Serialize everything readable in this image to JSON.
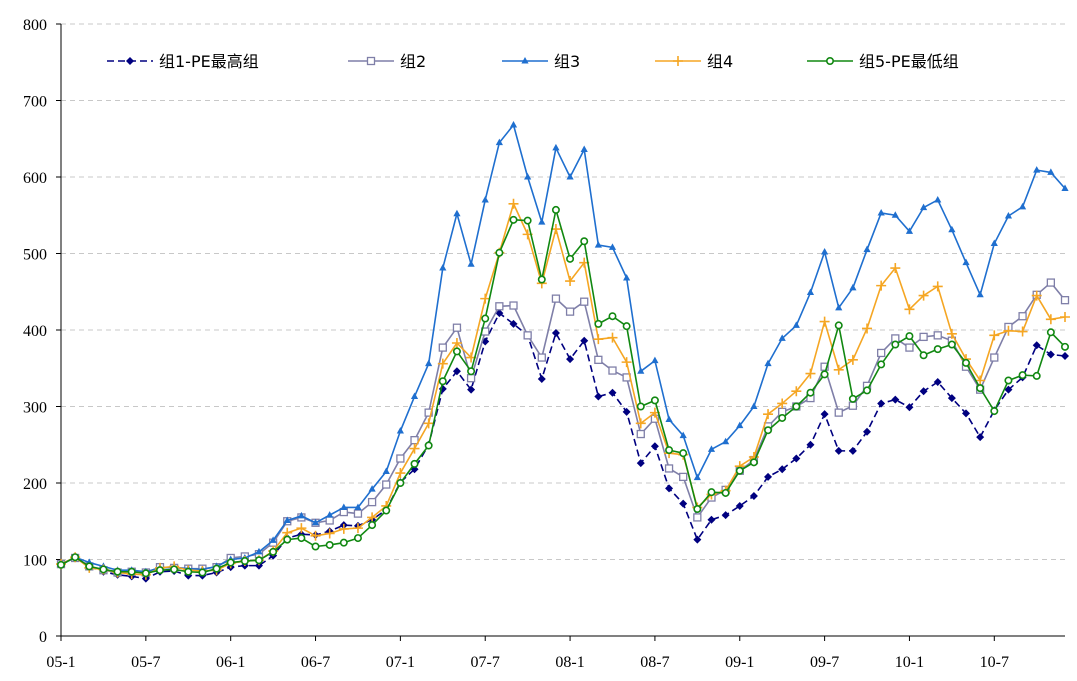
{
  "chart_data": {
    "type": "line",
    "title": "",
    "xlabel": "",
    "ylabel": "",
    "ylim": [
      0,
      800
    ],
    "yticks": [
      0,
      100,
      200,
      300,
      400,
      500,
      600,
      700,
      800
    ],
    "x_tick_labels": [
      "05-1",
      "05-7",
      "06-1",
      "06-7",
      "07-1",
      "07-7",
      "08-1",
      "08-7",
      "09-1",
      "09-7",
      "10-1",
      "10-7"
    ],
    "x_start": "2005-01",
    "grid": "horizontal dashed",
    "legend_position": "top",
    "series": [
      {
        "name": "组1-PE最高组",
        "color": "#000080",
        "marker": "diamond",
        "values": [
          93,
          103,
          91,
          84,
          80,
          78,
          75,
          84,
          85,
          79,
          79,
          83,
          90,
          92,
          92,
          105,
          128,
          133,
          132,
          137,
          145,
          144,
          152,
          165,
          201,
          218,
          250,
          323,
          346,
          322,
          385,
          422,
          408,
          393,
          336,
          396,
          362,
          386,
          313,
          318,
          293,
          226,
          248,
          193,
          173,
          126,
          152,
          158,
          170,
          183,
          208,
          218,
          232,
          250,
          290,
          242,
          242,
          267,
          304,
          309,
          299,
          320,
          332,
          311,
          291,
          260,
          295,
          322,
          338,
          380,
          368,
          366
        ]
      },
      {
        "name": "组2",
        "color": "#7F7FA8",
        "marker": "square",
        "values": [
          94,
          102,
          91,
          86,
          83,
          84,
          83,
          90,
          89,
          88,
          88,
          90,
          102,
          104,
          107,
          122,
          150,
          155,
          148,
          151,
          162,
          160,
          175,
          198,
          232,
          256,
          292,
          377,
          403,
          337,
          398,
          431,
          432,
          393,
          364,
          441,
          424,
          437,
          361,
          347,
          338,
          264,
          284,
          219,
          208,
          155,
          181,
          191,
          216,
          230,
          274,
          293,
          300,
          311,
          352,
          292,
          301,
          327,
          370,
          389,
          377,
          391,
          393,
          386,
          352,
          322,
          364,
          404,
          418,
          446,
          462,
          439
        ]
      },
      {
        "name": "组3",
        "color": "#1F6FCF",
        "marker": "triangle",
        "values": [
          94,
          103,
          96,
          91,
          86,
          86,
          84,
          89,
          90,
          88,
          87,
          91,
          100,
          102,
          110,
          125,
          151,
          157,
          148,
          158,
          168,
          168,
          192,
          215,
          268,
          313,
          356,
          481,
          552,
          486,
          570,
          645,
          668,
          600,
          541,
          638,
          600,
          636,
          511,
          508,
          468,
          346,
          360,
          283,
          262,
          207,
          244,
          254,
          275,
          300,
          356,
          389,
          406,
          449,
          502,
          429,
          455,
          505,
          553,
          550,
          529,
          560,
          570,
          531,
          488,
          446,
          513,
          549,
          561,
          609,
          606,
          585
        ]
      },
      {
        "name": "组4",
        "color": "#F5A623",
        "marker": "plus",
        "values": [
          94,
          103,
          89,
          87,
          83,
          81,
          80,
          89,
          91,
          86,
          85,
          86,
          95,
          98,
          99,
          111,
          135,
          141,
          131,
          134,
          140,
          141,
          155,
          170,
          213,
          245,
          278,
          356,
          383,
          364,
          441,
          501,
          565,
          525,
          461,
          532,
          464,
          488,
          388,
          390,
          358,
          278,
          292,
          239,
          237,
          168,
          185,
          190,
          222,
          234,
          290,
          304,
          320,
          343,
          411,
          348,
          361,
          402,
          458,
          481,
          427,
          445,
          457,
          395,
          362,
          334,
          393,
          399,
          398,
          445,
          414,
          417
        ]
      },
      {
        "name": "组5-PE最低组",
        "color": "#118811",
        "marker": "circle",
        "values": [
          93,
          103,
          91,
          87,
          84,
          84,
          82,
          86,
          87,
          84,
          83,
          88,
          96,
          98,
          99,
          110,
          126,
          128,
          117,
          119,
          122,
          128,
          145,
          164,
          200,
          225,
          249,
          333,
          372,
          346,
          415,
          501,
          544,
          543,
          466,
          557,
          493,
          516,
          408,
          418,
          405,
          300,
          308,
          243,
          239,
          166,
          188,
          187,
          216,
          227,
          269,
          285,
          300,
          318,
          342,
          406,
          310,
          321,
          355,
          381,
          392,
          367,
          375,
          381,
          357,
          324,
          294,
          334,
          341,
          340,
          397,
          378
        ]
      }
    ]
  }
}
